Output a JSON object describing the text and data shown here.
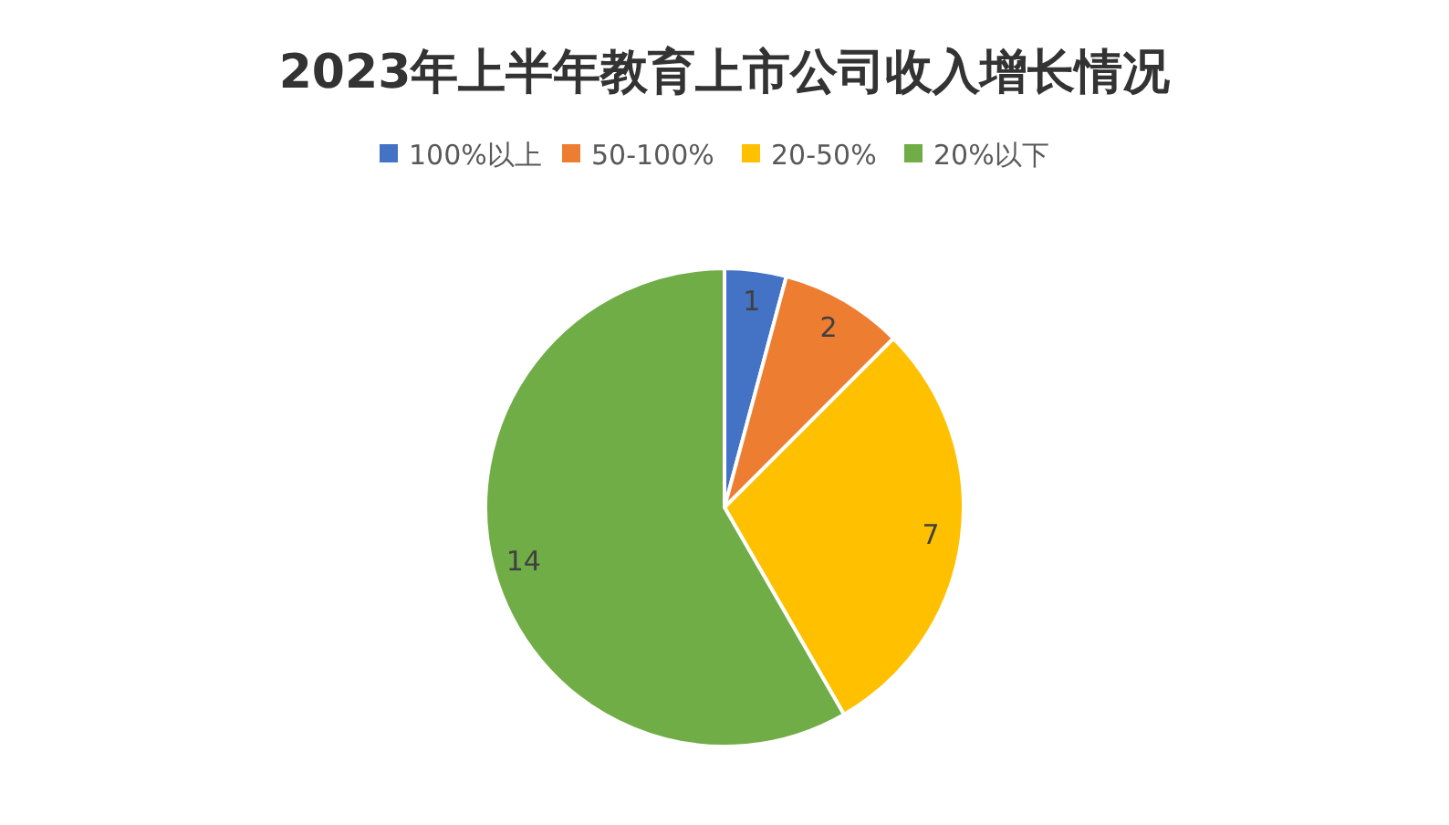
{
  "chart_data": {
    "type": "pie",
    "title": "2023年上半年教育上市公司收入增长情况",
    "categories": [
      "100%以上",
      "50-100%",
      "20-50%",
      "20%以下"
    ],
    "values": [
      1,
      2,
      7,
      14
    ],
    "colors": [
      "#4472c4",
      "#ed7d31",
      "#ffc000",
      "#70ad47"
    ],
    "data_labels": true,
    "legend": "top"
  }
}
